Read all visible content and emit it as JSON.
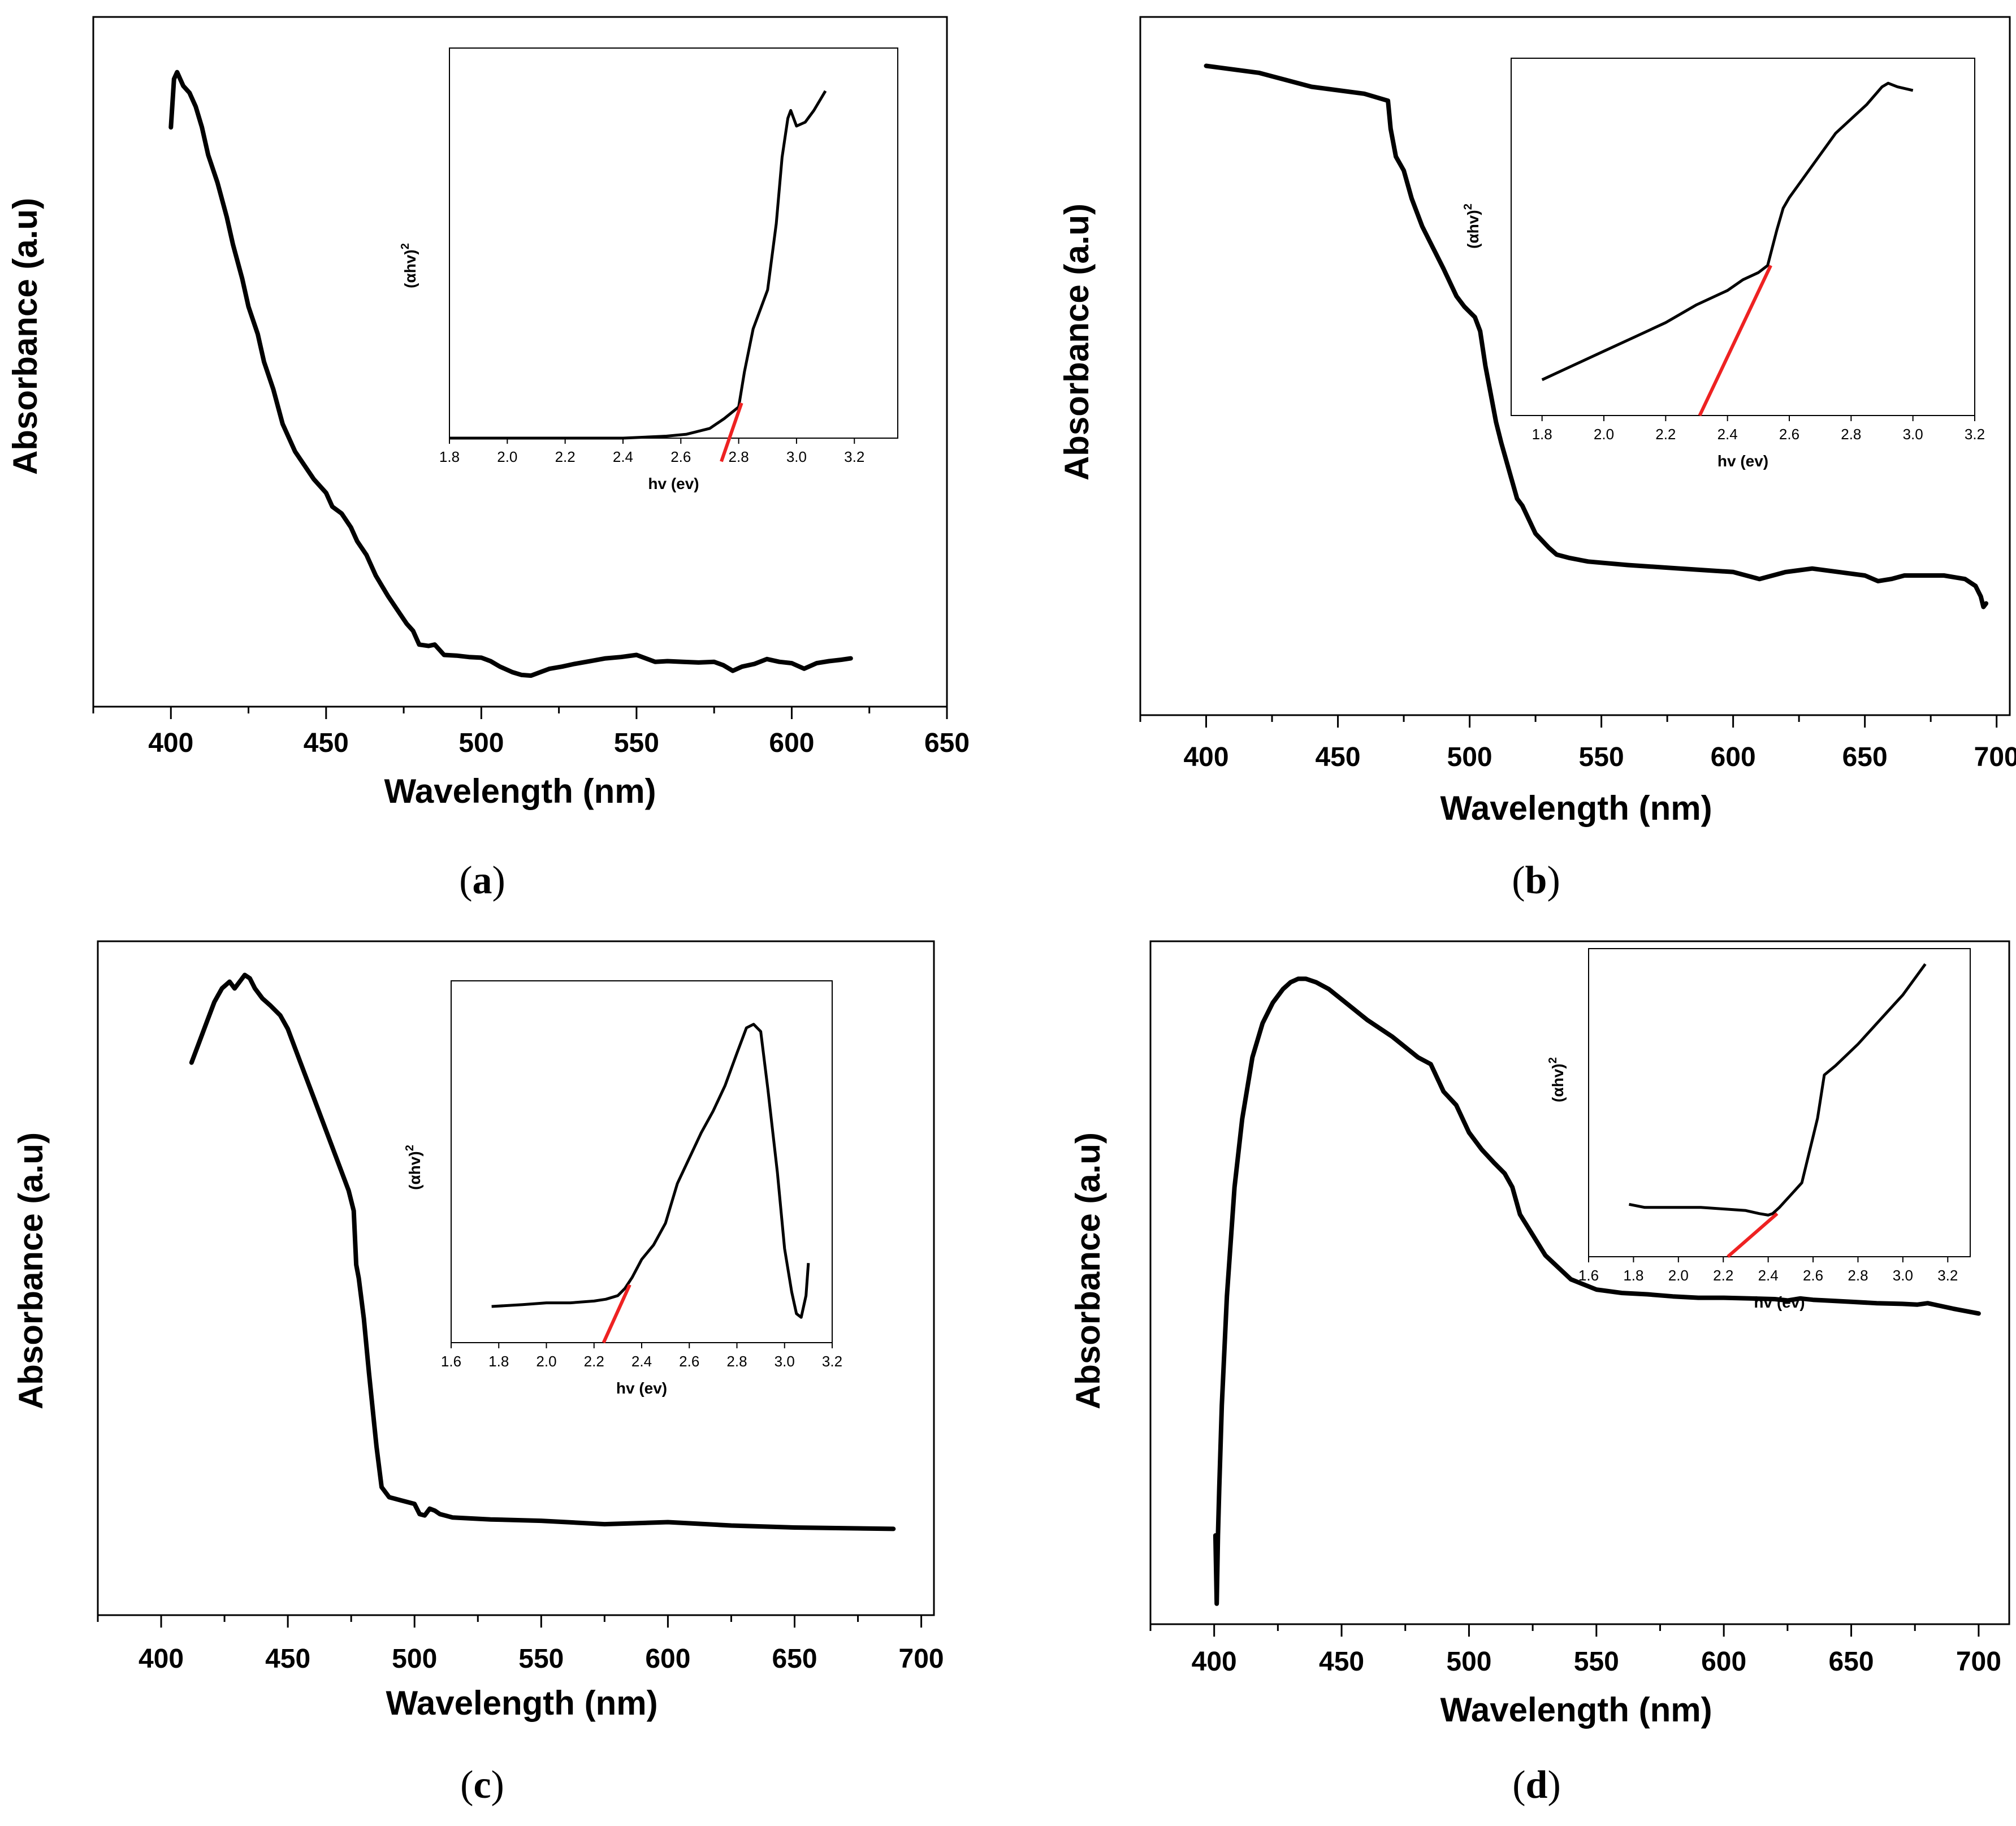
{
  "chart_data": [
    {
      "type": "line",
      "panel_label": "a",
      "xlabel": "Wavelength (nm)",
      "ylabel": "Absorbance (a.u)",
      "xlim": [
        375,
        650
      ],
      "xticks": [
        400,
        450,
        500,
        550,
        600,
        650
      ],
      "ylim": [
        0,
        1
      ],
      "series": [
        {
          "name": "absorbance",
          "x": [
            400,
            401,
            402,
            403,
            404,
            406,
            408,
            410,
            412,
            415,
            418,
            420,
            423,
            425,
            428,
            430,
            433,
            436,
            440,
            443,
            446,
            450,
            452,
            455,
            458,
            460,
            463,
            466,
            470,
            473,
            476,
            478,
            480,
            483,
            485,
            488,
            492,
            496,
            500,
            503,
            506,
            510,
            513,
            516,
            519,
            522,
            526,
            530,
            535,
            540,
            545,
            550,
            553,
            556,
            560,
            565,
            570,
            575,
            578,
            581,
            584,
            588,
            592,
            596,
            600,
            604,
            608,
            612,
            616,
            619
          ],
          "y": [
            0.84,
            0.91,
            0.92,
            0.91,
            0.9,
            0.89,
            0.87,
            0.84,
            0.8,
            0.76,
            0.71,
            0.67,
            0.62,
            0.58,
            0.54,
            0.5,
            0.46,
            0.41,
            0.37,
            0.35,
            0.33,
            0.31,
            0.29,
            0.28,
            0.26,
            0.24,
            0.22,
            0.19,
            0.16,
            0.14,
            0.12,
            0.11,
            0.09,
            0.088,
            0.09,
            0.075,
            0.074,
            0.072,
            0.071,
            0.066,
            0.058,
            0.05,
            0.046,
            0.045,
            0.05,
            0.055,
            0.058,
            0.062,
            0.066,
            0.07,
            0.072,
            0.075,
            0.07,
            0.065,
            0.066,
            0.065,
            0.064,
            0.065,
            0.06,
            0.052,
            0.058,
            0.062,
            0.069,
            0.065,
            0.063,
            0.055,
            0.063,
            0.066,
            0.068,
            0.07
          ]
        }
      ],
      "inset": {
        "xlabel": "hv (ev)",
        "ylabel": "(αhv)",
        "ylabel_sup": "2",
        "xlim": [
          1.8,
          3.35
        ],
        "xticks": [
          "1.8",
          "2.0",
          "2.2",
          "2.4",
          "2.6",
          "2.8",
          "3.0",
          "3.2"
        ],
        "ylim": [
          0,
          1
        ],
        "curve": {
          "x": [
            1.8,
            2.0,
            2.2,
            2.4,
            2.55,
            2.62,
            2.7,
            2.75,
            2.8,
            2.82,
            2.85,
            2.9,
            2.93,
            2.95,
            2.97,
            2.98,
            3.0,
            3.03,
            3.06,
            3.1
          ],
          "y": [
            0.0,
            0.0,
            0.0,
            0.0,
            0.005,
            0.01,
            0.025,
            0.05,
            0.08,
            0.17,
            0.28,
            0.38,
            0.55,
            0.72,
            0.82,
            0.84,
            0.8,
            0.81,
            0.84,
            0.89
          ]
        },
        "tangent": {
          "x": [
            2.74,
            2.81
          ],
          "y": [
            -0.06,
            0.09
          ],
          "color": "#ee2222"
        }
      }
    },
    {
      "type": "line",
      "panel_label": "b",
      "xlabel": "Wavelength (nm)",
      "ylabel": "Absorbance (a.u)",
      "xlim": [
        375,
        705
      ],
      "xticks": [
        400,
        450,
        500,
        550,
        600,
        650,
        700
      ],
      "ylim": [
        0,
        1
      ],
      "series": [
        {
          "name": "absorbance",
          "x": [
            400,
            420,
            440,
            460,
            469,
            470,
            472,
            475,
            478,
            482,
            486,
            490,
            495,
            498,
            502,
            504,
            506,
            508,
            510,
            512,
            515,
            518,
            520,
            525,
            530,
            533,
            538,
            545,
            560,
            580,
            600,
            605,
            610,
            620,
            630,
            640,
            650,
            655,
            660,
            665,
            670,
            680,
            688,
            692,
            694,
            695,
            696
          ],
          "y": [
            0.93,
            0.92,
            0.9,
            0.89,
            0.88,
            0.84,
            0.8,
            0.78,
            0.74,
            0.7,
            0.67,
            0.64,
            0.6,
            0.585,
            0.57,
            0.55,
            0.5,
            0.46,
            0.42,
            0.39,
            0.35,
            0.31,
            0.3,
            0.26,
            0.24,
            0.23,
            0.225,
            0.22,
            0.215,
            0.21,
            0.205,
            0.2,
            0.195,
            0.205,
            0.21,
            0.205,
            0.2,
            0.192,
            0.195,
            0.2,
            0.2,
            0.2,
            0.195,
            0.185,
            0.17,
            0.155,
            0.16
          ]
        }
      ],
      "inset": {
        "xlabel": "hv (ev)",
        "ylabel": "(αhv)",
        "ylabel_sup": "2",
        "xlim": [
          1.7,
          3.2
        ],
        "xticks": [
          "1.8",
          "2.0",
          "2.2",
          "2.4",
          "2.6",
          "2.8",
          "3.0",
          "3.2"
        ],
        "ylim": [
          0,
          1
        ],
        "curve": {
          "x": [
            1.8,
            1.9,
            2.0,
            2.1,
            2.2,
            2.3,
            2.4,
            2.45,
            2.5,
            2.53,
            2.56,
            2.58,
            2.6,
            2.65,
            2.7,
            2.75,
            2.8,
            2.85,
            2.9,
            2.92,
            2.95,
            3.0
          ],
          "y": [
            0.1,
            0.14,
            0.18,
            0.22,
            0.26,
            0.31,
            0.35,
            0.38,
            0.4,
            0.42,
            0.52,
            0.58,
            0.61,
            0.67,
            0.73,
            0.79,
            0.83,
            0.87,
            0.92,
            0.93,
            0.92,
            0.91
          ]
        },
        "tangent": {
          "x": [
            2.31,
            2.54
          ],
          "y": [
            0.0,
            0.42
          ],
          "color": "#ee2222"
        }
      }
    },
    {
      "type": "line",
      "panel_label": "c",
      "xlabel": "Wavelength (nm)",
      "ylabel": "Absorbance (a.u)",
      "xlim": [
        375,
        705
      ],
      "xticks": [
        400,
        450,
        500,
        550,
        600,
        650,
        700
      ],
      "ylim": [
        0,
        1
      ],
      "series": [
        {
          "name": "absorbance",
          "x": [
            412,
            415,
            418,
            421,
            424,
            427,
            429,
            431,
            433,
            435,
            437,
            440,
            443,
            447,
            450,
            455,
            460,
            465,
            470,
            474,
            476,
            477,
            478,
            480,
            482,
            485,
            487,
            490,
            495,
            500,
            502,
            504,
            506,
            508,
            510,
            515,
            530,
            550,
            575,
            600,
            625,
            650,
            689
          ],
          "y": [
            0.82,
            0.85,
            0.88,
            0.91,
            0.93,
            0.94,
            0.93,
            0.94,
            0.95,
            0.945,
            0.93,
            0.915,
            0.905,
            0.89,
            0.87,
            0.82,
            0.77,
            0.72,
            0.67,
            0.63,
            0.6,
            0.52,
            0.5,
            0.44,
            0.36,
            0.25,
            0.19,
            0.175,
            0.17,
            0.165,
            0.15,
            0.148,
            0.158,
            0.155,
            0.15,
            0.145,
            0.142,
            0.14,
            0.135,
            0.138,
            0.133,
            0.13,
            0.128
          ]
        }
      ],
      "inset": {
        "xlabel": "hv (ev)",
        "ylabel": "(αhv)",
        "ylabel_sup": "2",
        "xlim": [
          1.6,
          3.2
        ],
        "xticks": [
          "1.6",
          "1.8",
          "2.0",
          "2.2",
          "2.4",
          "2.6",
          "2.8",
          "3.0",
          "3.2"
        ],
        "ylim": [
          0,
          1
        ],
        "curve": {
          "x": [
            1.77,
            1.9,
            2.0,
            2.1,
            2.2,
            2.25,
            2.3,
            2.33,
            2.36,
            2.4,
            2.45,
            2.5,
            2.55,
            2.6,
            2.65,
            2.7,
            2.75,
            2.8,
            2.84,
            2.87,
            2.9,
            2.93,
            2.97,
            3.0,
            3.03,
            3.05,
            3.07,
            3.09,
            3.1
          ],
          "y": [
            0.1,
            0.105,
            0.11,
            0.11,
            0.115,
            0.12,
            0.13,
            0.15,
            0.18,
            0.23,
            0.27,
            0.33,
            0.44,
            0.51,
            0.58,
            0.64,
            0.71,
            0.8,
            0.87,
            0.88,
            0.86,
            0.7,
            0.47,
            0.26,
            0.14,
            0.08,
            0.07,
            0.13,
            0.22
          ]
        },
        "tangent": {
          "x": [
            2.24,
            2.35
          ],
          "y": [
            0.0,
            0.16
          ],
          "color": "#ee2222"
        }
      }
    },
    {
      "type": "line",
      "panel_label": "d",
      "xlabel": "Wavelength (nm)",
      "ylabel": "Absorbance (a.u)",
      "xlim": [
        375,
        712
      ],
      "xticks": [
        400,
        450,
        500,
        550,
        600,
        650,
        700
      ],
      "ylim": [
        0,
        1
      ],
      "series": [
        {
          "name": "absorbance",
          "x": [
            400.5,
            401,
            401.5,
            402,
            403,
            405,
            408,
            411,
            415,
            419,
            423,
            427,
            430,
            433,
            436,
            440,
            445,
            450,
            460,
            470,
            480,
            485,
            490,
            495,
            500,
            505,
            510,
            514,
            517,
            520,
            525,
            530,
            540,
            550,
            560,
            570,
            580,
            590,
            600,
            610,
            620,
            625,
            630,
            635,
            640,
            650,
            660,
            670,
            676,
            680,
            690,
            700
          ],
          "y": [
            0.13,
            0.03,
            0.13,
            0.2,
            0.32,
            0.48,
            0.64,
            0.74,
            0.83,
            0.88,
            0.91,
            0.93,
            0.94,
            0.945,
            0.945,
            0.94,
            0.93,
            0.915,
            0.885,
            0.86,
            0.83,
            0.82,
            0.78,
            0.76,
            0.72,
            0.695,
            0.675,
            0.66,
            0.64,
            0.6,
            0.57,
            0.54,
            0.505,
            0.49,
            0.485,
            0.483,
            0.48,
            0.478,
            0.478,
            0.477,
            0.476,
            0.474,
            0.477,
            0.475,
            0.474,
            0.472,
            0.47,
            0.469,
            0.468,
            0.47,
            0.462,
            0.455
          ]
        }
      ],
      "inset": {
        "xlabel": "hv (ev)",
        "ylabel": "(αhv)",
        "ylabel_sup": "2",
        "xlim": [
          1.6,
          3.3
        ],
        "xticks": [
          "1.6",
          "1.8",
          "2.0",
          "2.2",
          "2.4",
          "2.6",
          "2.8",
          "3.0",
          "3.2"
        ],
        "ylim": [
          0,
          1
        ],
        "curve": {
          "x": [
            1.78,
            1.85,
            2.0,
            2.1,
            2.2,
            2.3,
            2.36,
            2.4,
            2.42,
            2.45,
            2.5,
            2.55,
            2.58,
            2.6,
            2.62,
            2.65,
            2.7,
            2.8,
            2.9,
            3.0,
            3.1
          ],
          "y": [
            0.17,
            0.16,
            0.16,
            0.16,
            0.155,
            0.15,
            0.14,
            0.135,
            0.14,
            0.16,
            0.2,
            0.24,
            0.33,
            0.39,
            0.45,
            0.59,
            0.62,
            0.69,
            0.77,
            0.85,
            0.95
          ]
        },
        "tangent": {
          "x": [
            2.22,
            2.44
          ],
          "y": [
            0.0,
            0.14
          ],
          "color": "#ee2222"
        }
      }
    }
  ]
}
